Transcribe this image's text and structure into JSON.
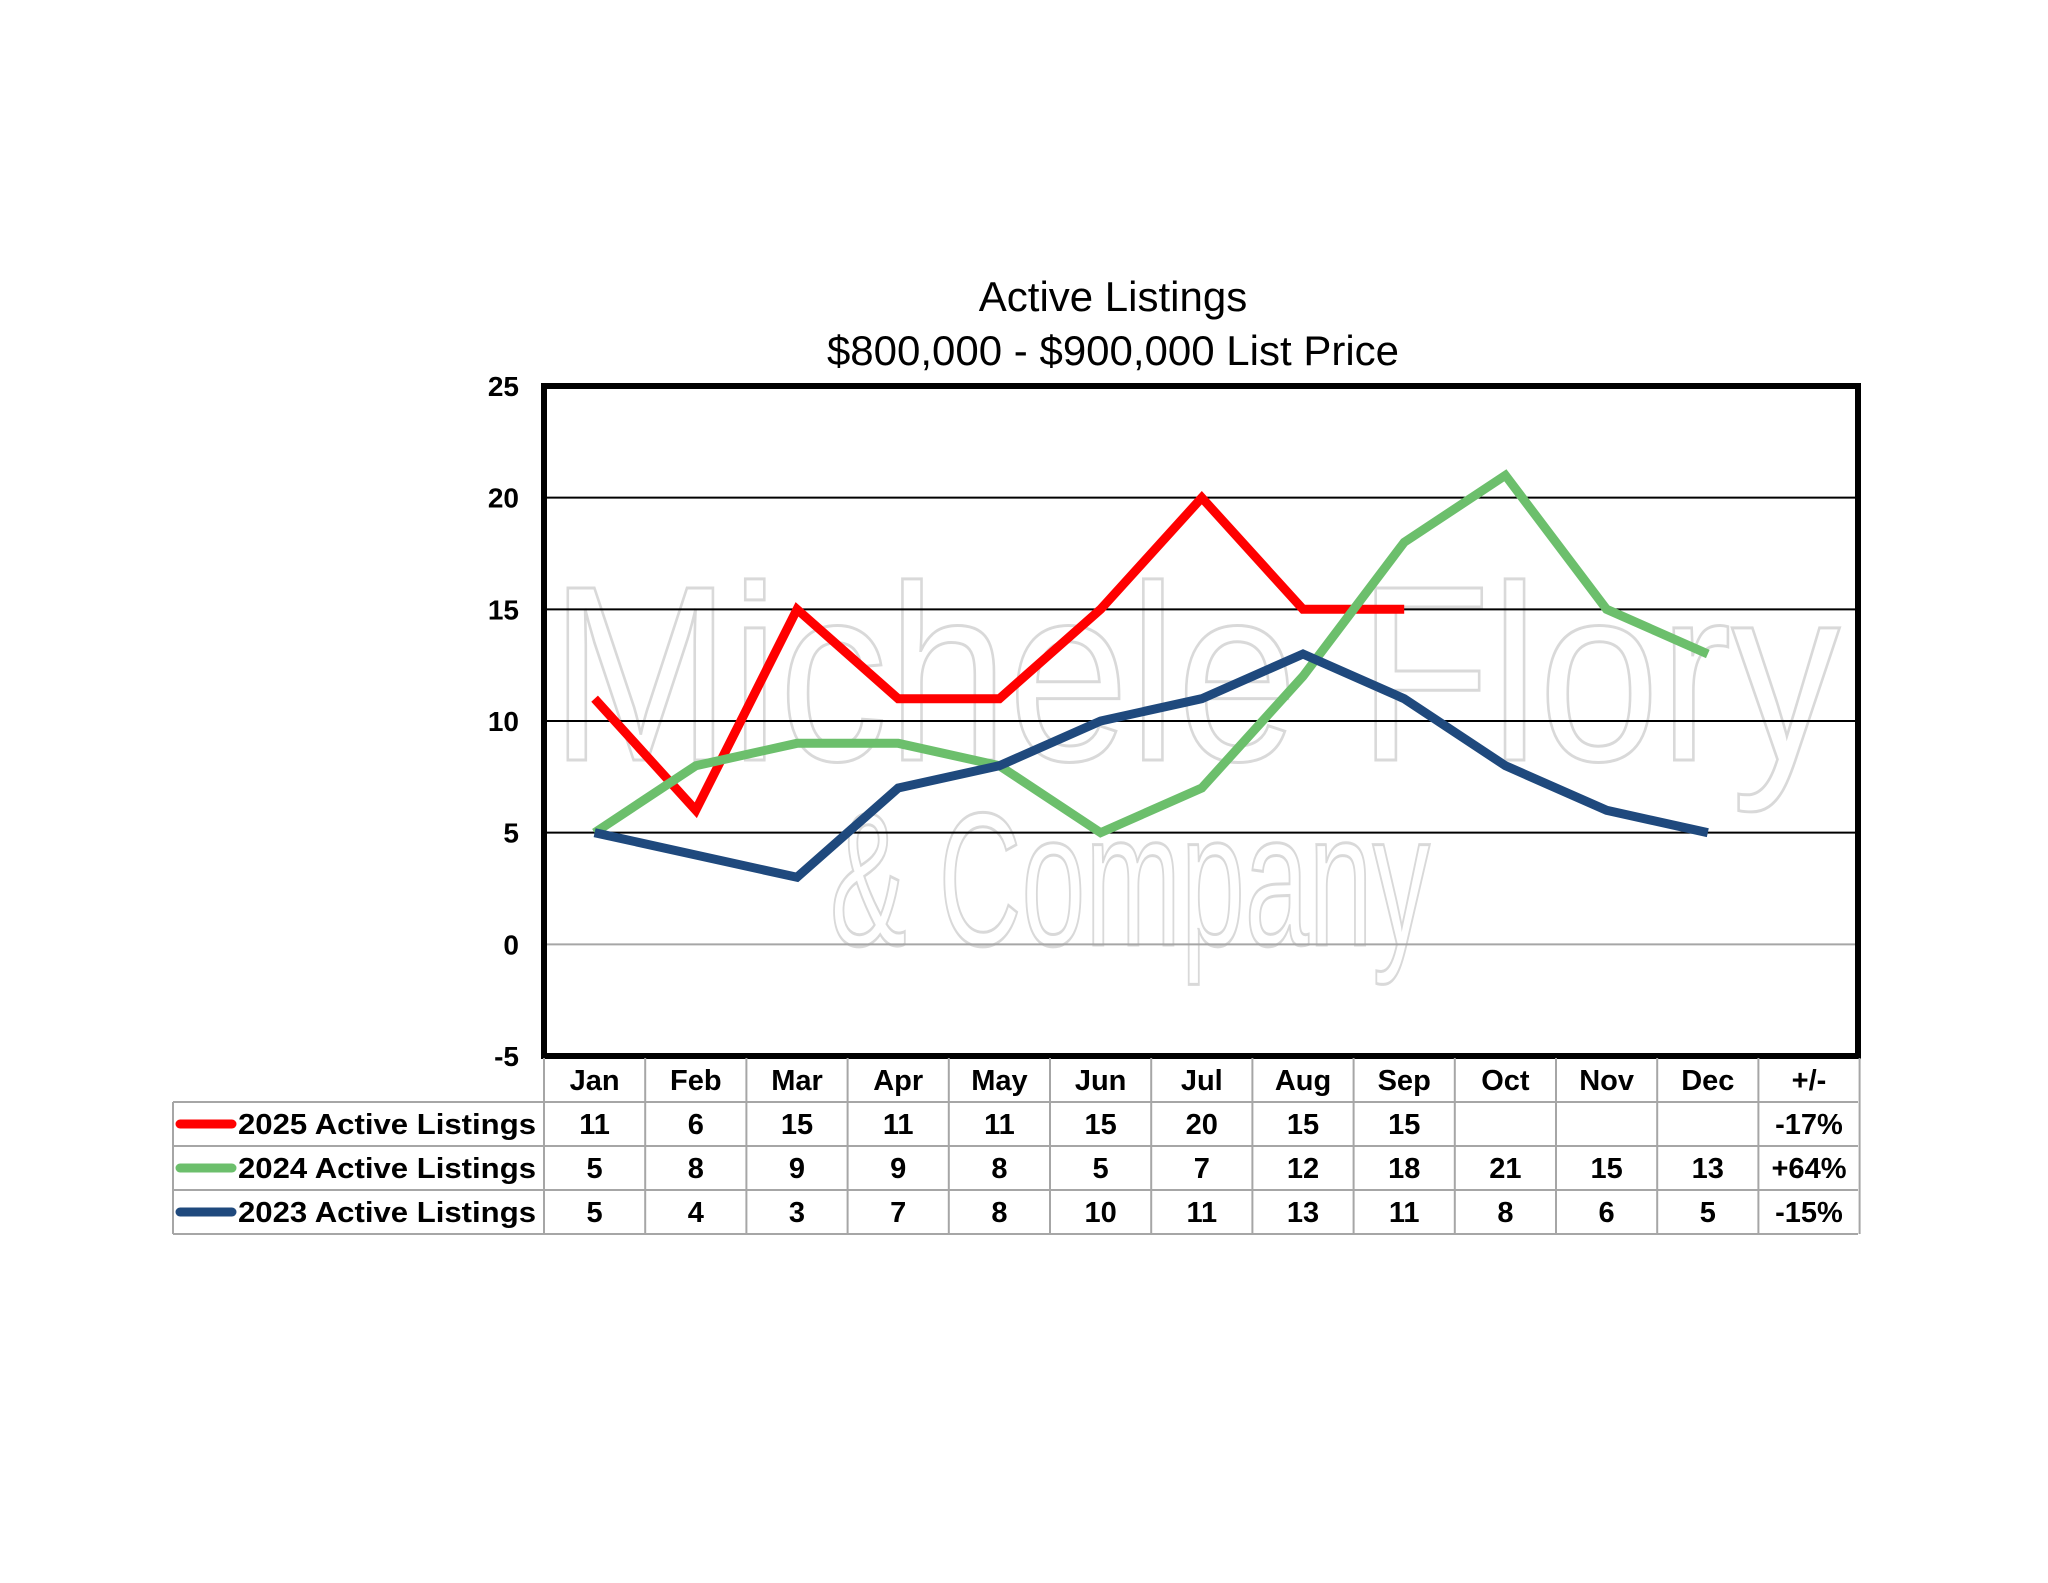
{
  "chart_data": {
    "type": "line",
    "title": "Active Listings",
    "subtitle": "$800,000 - $900,000 List Price",
    "categories": [
      "Jan",
      "Feb",
      "Mar",
      "Apr",
      "May",
      "Jun",
      "Jul",
      "Aug",
      "Sep",
      "Oct",
      "Nov",
      "Dec"
    ],
    "change_header": "+/-",
    "ylim": [
      -5,
      25
    ],
    "yticks": [
      25,
      20,
      15,
      10,
      5,
      0,
      -5
    ],
    "grid": true,
    "series": [
      {
        "name": "2025 Active Listings",
        "color": "#ff0000",
        "values": [
          11,
          6,
          15,
          11,
          11,
          15,
          20,
          15,
          15,
          null,
          null,
          null
        ],
        "change": "-17%"
      },
      {
        "name": "2024 Active Listings",
        "color": "#6cbf6c",
        "values": [
          5,
          8,
          9,
          9,
          8,
          5,
          7,
          12,
          18,
          21,
          15,
          13
        ],
        "change": "+64%"
      },
      {
        "name": "2023 Active Listings",
        "color": "#1f497d",
        "values": [
          5,
          4,
          3,
          7,
          8,
          10,
          11,
          13,
          11,
          8,
          6,
          5
        ],
        "change": "-15%"
      }
    ],
    "watermark": {
      "line1": "Michele Flory",
      "line2": "& Company"
    }
  }
}
